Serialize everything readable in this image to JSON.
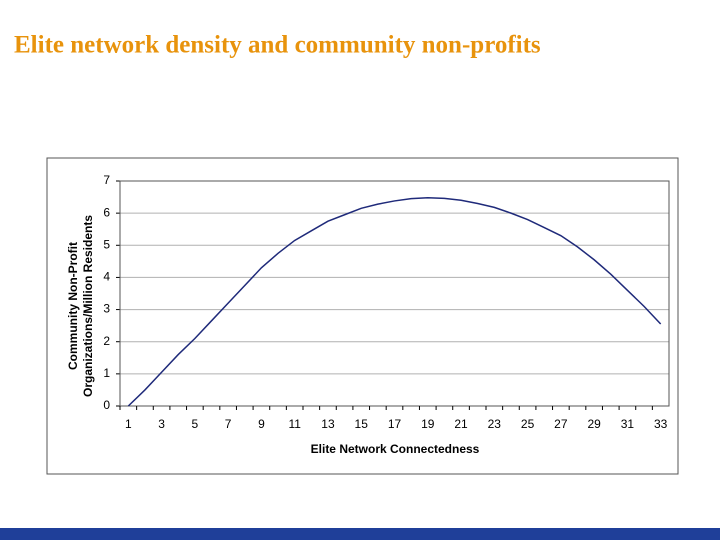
{
  "chart_data": {
    "type": "line",
    "title": "Elite network density and community non-profits",
    "xlabel": "Elite Network Connectedness",
    "ylabel": [
      "Community Non-Profit",
      "Organizations/Million Residents"
    ],
    "categories": [
      1,
      null,
      3,
      null,
      5,
      null,
      7,
      null,
      9,
      null,
      11,
      null,
      13,
      null,
      15,
      null,
      17,
      null,
      19,
      null,
      21,
      null,
      23,
      null,
      25,
      null,
      27,
      null,
      29,
      null,
      31,
      null,
      33
    ],
    "values": [
      0.0,
      0.5,
      1.05,
      1.6,
      2.1,
      2.65,
      3.2,
      3.75,
      4.3,
      4.75,
      5.15,
      5.45,
      5.75,
      5.95,
      6.15,
      6.28,
      6.38,
      6.45,
      6.48,
      6.46,
      6.4,
      6.3,
      6.18,
      6.0,
      5.8,
      5.55,
      5.3,
      4.95,
      4.55,
      4.1,
      3.6,
      3.1,
      2.55
    ],
    "color": "#1f2a7a",
    "ylim": [
      0,
      7
    ],
    "yticks": [
      0,
      1,
      2,
      3,
      4,
      5,
      6,
      7
    ],
    "grid": true
  }
}
